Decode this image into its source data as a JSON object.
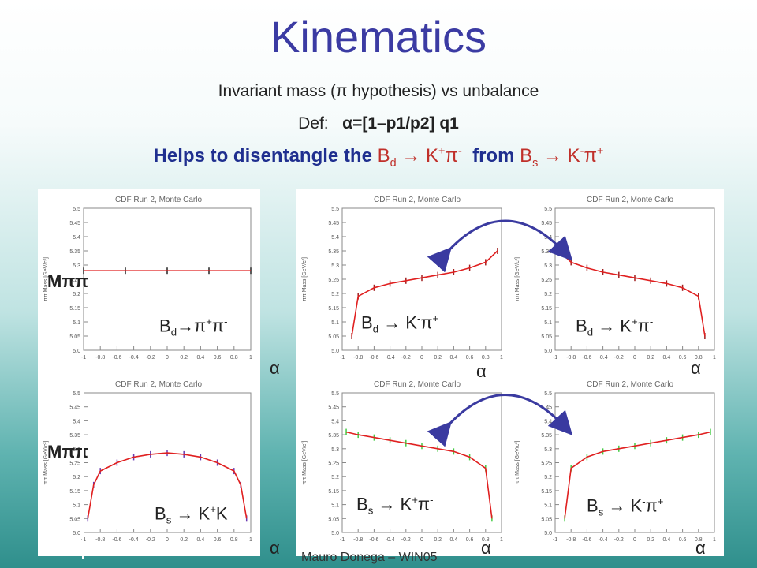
{
  "slide": {
    "title": "Kinematics",
    "subtitle": "Invariant mass (π hypothesis) vs unbalance",
    "definition_prefix": "Def:",
    "definition_formula": "α=[1–p1/p2] q1",
    "highlight_prefix": "Helps to disentangle the",
    "highlight_mid": "from",
    "footer": "Mauro Donega – WIN05"
  },
  "axes": {
    "y_axis_label": "Mππ",
    "x_axis_label": "α",
    "panel_header": "CDF Run 2, Monte Carlo",
    "inner_ylabel": "ππ Mass [GeV/c²]"
  },
  "colors": {
    "title": "#3b3ba3",
    "highlight": "#1f2f8f",
    "decay": "#c0302a",
    "fit": "#e02020",
    "arrow": "#3a3aa0"
  },
  "chart_data": [
    {
      "type": "scatter",
      "row": 1,
      "col": 1,
      "label": "Bd→π+π-",
      "fit": "flat",
      "data_color": "#222222",
      "ylim": [
        5,
        5.5
      ],
      "xlim": [
        -1,
        1
      ],
      "x": [
        -1,
        -0.5,
        0,
        0.5,
        1
      ],
      "y": [
        5.28,
        5.28,
        5.28,
        5.28,
        5.28
      ]
    },
    {
      "type": "scatter",
      "row": 1,
      "col": 2,
      "label": "Bd → K-π+",
      "fit": "rising",
      "data_color": "#a02020",
      "ylim": [
        5,
        5.5
      ],
      "xlim": [
        -1,
        1
      ],
      "x": [
        -0.88,
        -0.8,
        -0.6,
        -0.4,
        -0.2,
        0,
        0.2,
        0.4,
        0.6,
        0.8,
        0.95
      ],
      "y": [
        5.05,
        5.19,
        5.22,
        5.235,
        5.245,
        5.255,
        5.265,
        5.275,
        5.29,
        5.31,
        5.35
      ]
    },
    {
      "type": "scatter",
      "row": 1,
      "col": 3,
      "label": "Bd → K+π-",
      "fit": "falling",
      "data_color": "#a02020",
      "ylim": [
        5,
        5.5
      ],
      "xlim": [
        -1,
        1
      ],
      "x": [
        -0.95,
        -0.8,
        -0.6,
        -0.4,
        -0.2,
        0,
        0.2,
        0.4,
        0.6,
        0.8,
        0.88
      ],
      "y": [
        5.35,
        5.31,
        5.29,
        5.275,
        5.265,
        5.255,
        5.245,
        5.235,
        5.22,
        5.19,
        5.05
      ]
    },
    {
      "type": "scatter",
      "row": 2,
      "col": 1,
      "label": "Bs → K+K-",
      "fit": "dome",
      "data_color": "#6a3ab0",
      "ylim": [
        5,
        5.5
      ],
      "xlim": [
        -1,
        1
      ],
      "x": [
        -0.95,
        -0.88,
        -0.8,
        -0.6,
        -0.4,
        -0.2,
        0,
        0.2,
        0.4,
        0.6,
        0.8,
        0.88,
        0.95
      ],
      "y": [
        5.05,
        5.17,
        5.22,
        5.25,
        5.27,
        5.28,
        5.285,
        5.28,
        5.27,
        5.25,
        5.22,
        5.17,
        5.05
      ]
    },
    {
      "type": "scatter",
      "row": 2,
      "col": 2,
      "label": "Bs → K+π-",
      "fit": "falling-shift",
      "data_color": "#44cc44",
      "ylim": [
        5,
        5.5
      ],
      "xlim": [
        -1,
        1
      ],
      "x": [
        -0.95,
        -0.8,
        -0.6,
        -0.4,
        -0.2,
        0,
        0.2,
        0.4,
        0.6,
        0.8,
        0.88
      ],
      "y": [
        5.36,
        5.35,
        5.34,
        5.33,
        5.32,
        5.31,
        5.3,
        5.29,
        5.27,
        5.23,
        5.05
      ]
    },
    {
      "type": "scatter",
      "row": 2,
      "col": 3,
      "label": "Bs → K-π+",
      "fit": "rising-shift",
      "data_color": "#44cc44",
      "ylim": [
        5,
        5.5
      ],
      "xlim": [
        -1,
        1
      ],
      "x": [
        -0.88,
        -0.8,
        -0.6,
        -0.4,
        -0.2,
        0,
        0.2,
        0.4,
        0.6,
        0.8,
        0.95
      ],
      "y": [
        5.05,
        5.23,
        5.27,
        5.29,
        5.3,
        5.31,
        5.32,
        5.33,
        5.34,
        5.35,
        5.36
      ]
    }
  ]
}
